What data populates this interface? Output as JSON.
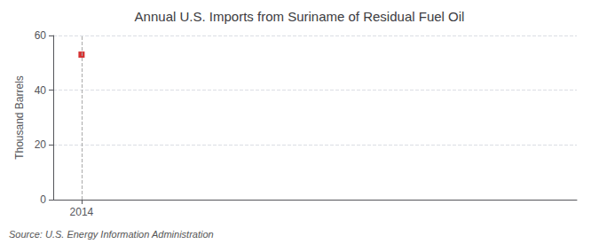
{
  "chart_data": {
    "type": "scatter",
    "title": "Annual U.S. Imports from Suriname of Residual Fuel Oil",
    "ylabel": "Thousand Barrels",
    "source": "Source: U.S. Energy Information Administration",
    "x": [
      2014
    ],
    "values": [
      53
    ],
    "color": "#cc0000",
    "marker": "square",
    "xlim": [
      2013.6,
      2021.0
    ],
    "xticks": [
      2014
    ],
    "ylim": [
      0,
      60
    ],
    "yticks": [
      0,
      20,
      40,
      60
    ],
    "grid": true,
    "vline": 2014
  }
}
